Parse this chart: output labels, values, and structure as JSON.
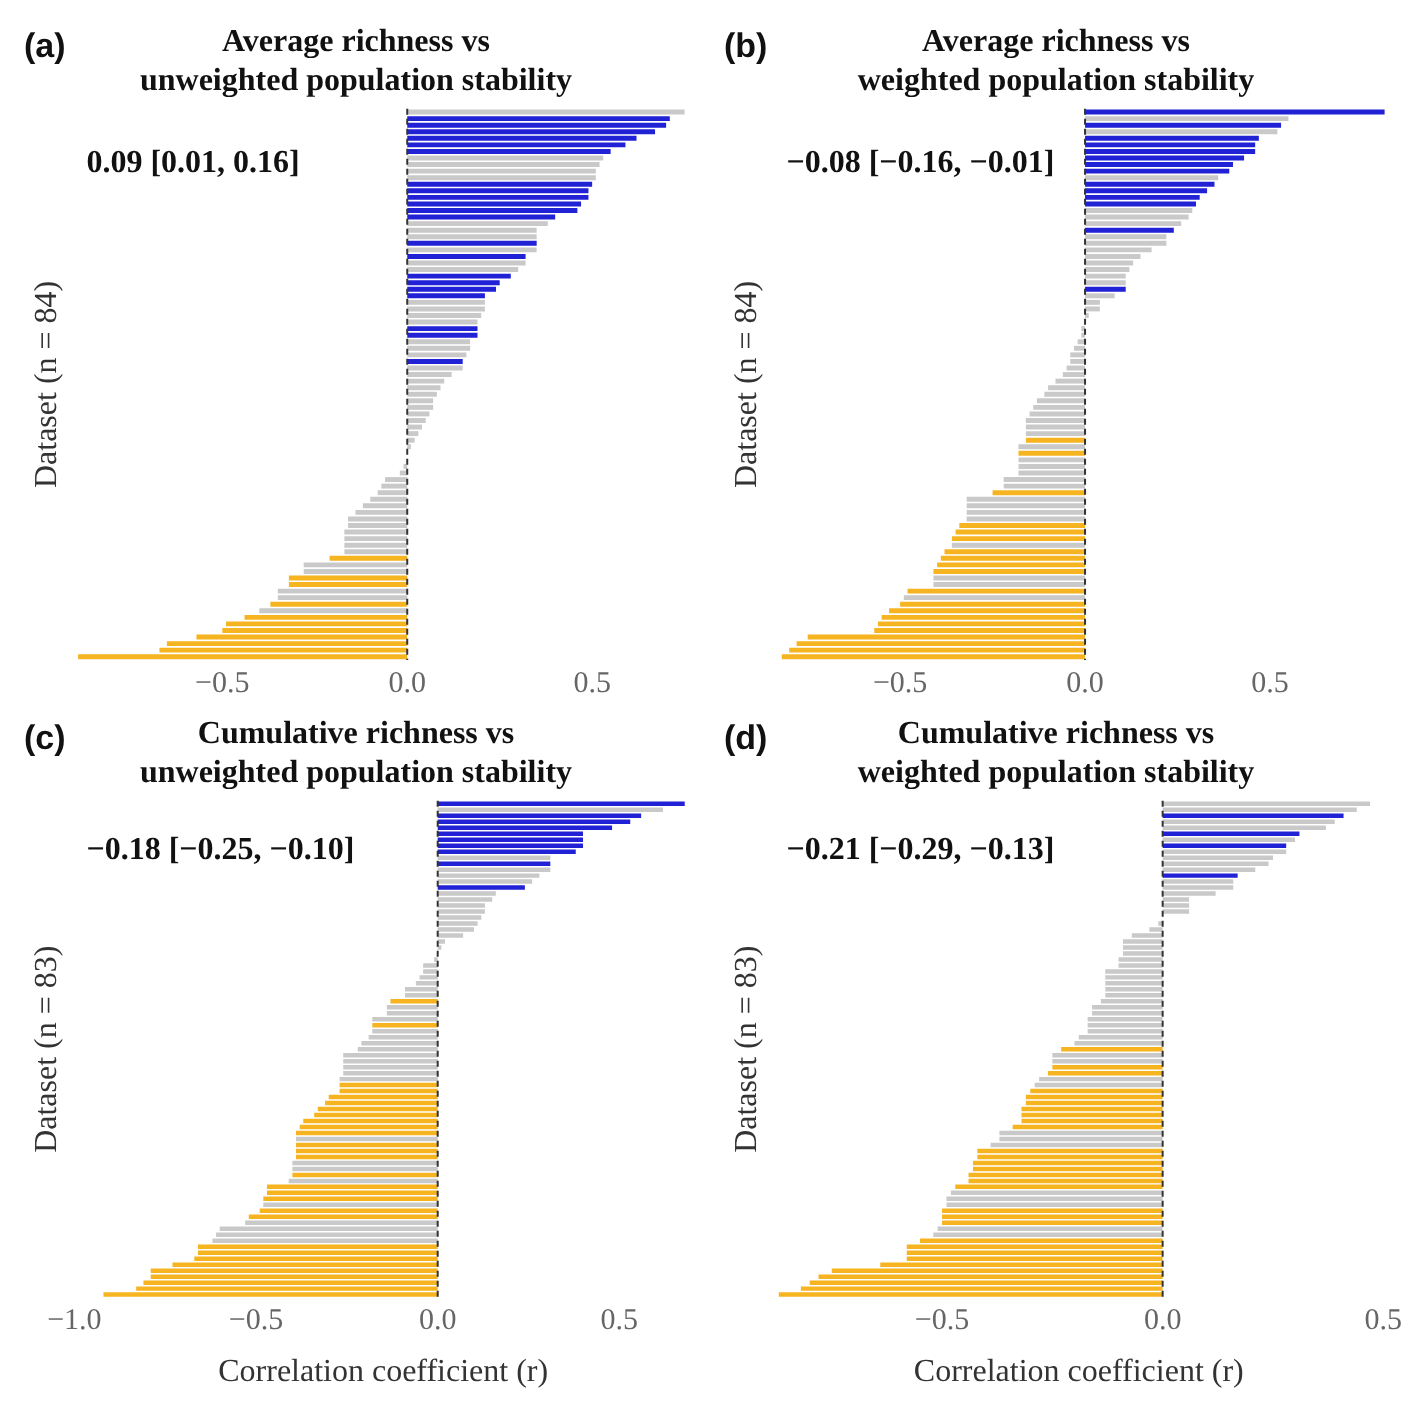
{
  "chart_data": [
    {
      "type": "bar",
      "orientation": "horizontal",
      "title": "Average richness vs\nunweighted population stability",
      "ylabel": "Dataset (n = 84)",
      "tick_labels": "x",
      "xlim": [
        -0.9,
        0.77
      ],
      "xticks": [
        {
          "value": -0.5,
          "label": "−0.5"
        },
        {
          "value": 0,
          "label": "0.0"
        },
        {
          "value": 0.5,
          "label": "0.5"
        }
      ],
      "ref_lines": [
        {
          "axis": "x",
          "value": 0,
          "line_style": "dashed",
          "color": "#333333"
        }
      ],
      "annotations": [
        "(a)",
        "0.09 [0.01, 0.16]"
      ],
      "categories": [
        null,
        null,
        null,
        null,
        null,
        null,
        null,
        null,
        null,
        null,
        null,
        null,
        null,
        null,
        null,
        null,
        null,
        null,
        null,
        null,
        null,
        null,
        null,
        null,
        null,
        null,
        null,
        null,
        null,
        null,
        null,
        null,
        null,
        null,
        null,
        null,
        null,
        null,
        null,
        null,
        null,
        null,
        null,
        null,
        null,
        null,
        null,
        null,
        null,
        null,
        null,
        null,
        null,
        null,
        null,
        null,
        null,
        null,
        null,
        null,
        null,
        null,
        null,
        null,
        null,
        null,
        null,
        null,
        null,
        null,
        null,
        null,
        null,
        null,
        null,
        null,
        null,
        null,
        null,
        null,
        null,
        null,
        null,
        null
      ],
      "values": [
        0.75,
        0.71,
        0.7,
        0.67,
        0.62,
        0.59,
        0.55,
        0.53,
        0.52,
        0.51,
        0.51,
        0.5,
        0.49,
        0.49,
        0.47,
        0.46,
        0.4,
        0.38,
        0.35,
        0.35,
        0.35,
        0.35,
        0.32,
        0.32,
        0.3,
        0.28,
        0.25,
        0.24,
        0.21,
        0.21,
        0.21,
        0.2,
        0.19,
        0.19,
        0.19,
        0.17,
        0.17,
        0.16,
        0.15,
        0.15,
        0.12,
        0.1,
        0.09,
        0.08,
        0.07,
        0.07,
        0.06,
        0.05,
        0.04,
        0.03,
        0.02,
        0.01,
        0,
        0,
        -0.01,
        -0.02,
        -0.06,
        -0.07,
        -0.08,
        -0.1,
        -0.12,
        -0.14,
        -0.16,
        -0.16,
        -0.17,
        -0.17,
        -0.17,
        -0.17,
        -0.21,
        -0.28,
        -0.28,
        -0.32,
        -0.32,
        -0.35,
        -0.35,
        -0.37,
        -0.4,
        -0.44,
        -0.49,
        -0.5,
        -0.57,
        -0.65,
        -0.67,
        -0.89
      ],
      "colors": [
        "#c9c9c9",
        "#2121d6",
        "#2121d6",
        "#2121d6",
        "#2121d6",
        "#2121d6",
        "#2121d6",
        "#c9c9c9",
        "#c9c9c9",
        "#c9c9c9",
        "#c9c9c9",
        "#2121d6",
        "#2121d6",
        "#2121d6",
        "#2121d6",
        "#2121d6",
        "#2121d6",
        "#c9c9c9",
        "#c9c9c9",
        "#c9c9c9",
        "#2121d6",
        "#c9c9c9",
        "#2121d6",
        "#c9c9c9",
        "#c9c9c9",
        "#2121d6",
        "#2121d6",
        "#2121d6",
        "#2121d6",
        "#c9c9c9",
        "#c9c9c9",
        "#c9c9c9",
        "#c9c9c9",
        "#2121d6",
        "#2121d6",
        "#c9c9c9",
        "#c9c9c9",
        "#c9c9c9",
        "#2121d6",
        "#c9c9c9",
        "#c9c9c9",
        "#c9c9c9",
        "#c9c9c9",
        "#c9c9c9",
        "#c9c9c9",
        "#c9c9c9",
        "#c9c9c9",
        "#c9c9c9",
        "#c9c9c9",
        "#c9c9c9",
        "#c9c9c9",
        "#c9c9c9",
        "#c9c9c9",
        "#c9c9c9",
        "#c9c9c9",
        "#c9c9c9",
        "#c9c9c9",
        "#c9c9c9",
        "#c9c9c9",
        "#c9c9c9",
        "#c9c9c9",
        "#c9c9c9",
        "#c9c9c9",
        "#c9c9c9",
        "#c9c9c9",
        "#c9c9c9",
        "#c9c9c9",
        "#c9c9c9",
        "#f6b420",
        "#c9c9c9",
        "#c9c9c9",
        "#f6b420",
        "#f6b420",
        "#c9c9c9",
        "#c9c9c9",
        "#f6b420",
        "#c9c9c9",
        "#f6b420",
        "#f6b420",
        "#f6b420",
        "#f6b420",
        "#f6b420",
        "#f6b420",
        "#f6b420"
      ]
    },
    {
      "type": "bar",
      "orientation": "horizontal",
      "title": "Average richness vs\nweighted population stability",
      "ylabel": "Dataset (n = 84)",
      "tick_labels": "x",
      "xlim": [
        -0.84,
        0.83
      ],
      "xticks": [
        {
          "value": -0.5,
          "label": "−0.5"
        },
        {
          "value": 0,
          "label": "0.0"
        },
        {
          "value": 0.5,
          "label": "0.5"
        }
      ],
      "ref_lines": [
        {
          "axis": "x",
          "value": 0,
          "line_style": "dashed",
          "color": "#333333"
        }
      ],
      "annotations": [
        "(b)",
        "−0.08 [−0.16, −0.01]"
      ],
      "categories": [
        null,
        null,
        null,
        null,
        null,
        null,
        null,
        null,
        null,
        null,
        null,
        null,
        null,
        null,
        null,
        null,
        null,
        null,
        null,
        null,
        null,
        null,
        null,
        null,
        null,
        null,
        null,
        null,
        null,
        null,
        null,
        null,
        null,
        null,
        null,
        null,
        null,
        null,
        null,
        null,
        null,
        null,
        null,
        null,
        null,
        null,
        null,
        null,
        null,
        null,
        null,
        null,
        null,
        null,
        null,
        null,
        null,
        null,
        null,
        null,
        null,
        null,
        null,
        null,
        null,
        null,
        null,
        null,
        null,
        null,
        null,
        null,
        null,
        null,
        null,
        null,
        null,
        null,
        null,
        null,
        null,
        null,
        null,
        null
      ],
      "values": [
        0.81,
        0.55,
        0.53,
        0.52,
        0.47,
        0.46,
        0.46,
        0.43,
        0.4,
        0.39,
        0.36,
        0.35,
        0.33,
        0.31,
        0.3,
        0.29,
        0.28,
        0.26,
        0.24,
        0.22,
        0.22,
        0.18,
        0.15,
        0.13,
        0.12,
        0.11,
        0.11,
        0.11,
        0.08,
        0.04,
        0.04,
        0.01,
        0,
        -0.01,
        -0.01,
        -0.02,
        -0.03,
        -0.04,
        -0.04,
        -0.05,
        -0.06,
        -0.08,
        -0.1,
        -0.11,
        -0.13,
        -0.14,
        -0.15,
        -0.16,
        -0.16,
        -0.16,
        -0.16,
        -0.18,
        -0.18,
        -0.18,
        -0.18,
        -0.18,
        -0.22,
        -0.22,
        -0.25,
        -0.32,
        -0.32,
        -0.32,
        -0.32,
        -0.34,
        -0.35,
        -0.36,
        -0.36,
        -0.38,
        -0.39,
        -0.4,
        -0.41,
        -0.41,
        -0.41,
        -0.48,
        -0.49,
        -0.5,
        -0.53,
        -0.55,
        -0.56,
        -0.57,
        -0.75,
        -0.78,
        -0.8,
        -0.82
      ],
      "colors": [
        "#2121d6",
        "#c9c9c9",
        "#2121d6",
        "#c9c9c9",
        "#2121d6",
        "#2121d6",
        "#2121d6",
        "#2121d6",
        "#2121d6",
        "#2121d6",
        "#c9c9c9",
        "#2121d6",
        "#2121d6",
        "#2121d6",
        "#2121d6",
        "#c9c9c9",
        "#c9c9c9",
        "#c9c9c9",
        "#2121d6",
        "#c9c9c9",
        "#c9c9c9",
        "#c9c9c9",
        "#c9c9c9",
        "#c9c9c9",
        "#c9c9c9",
        "#c9c9c9",
        "#c9c9c9",
        "#2121d6",
        "#c9c9c9",
        "#c9c9c9",
        "#c9c9c9",
        "#c9c9c9",
        "#c9c9c9",
        "#c9c9c9",
        "#c9c9c9",
        "#c9c9c9",
        "#c9c9c9",
        "#c9c9c9",
        "#c9c9c9",
        "#c9c9c9",
        "#c9c9c9",
        "#c9c9c9",
        "#c9c9c9",
        "#c9c9c9",
        "#c9c9c9",
        "#c9c9c9",
        "#c9c9c9",
        "#c9c9c9",
        "#c9c9c9",
        "#c9c9c9",
        "#f6b420",
        "#c9c9c9",
        "#f6b420",
        "#c9c9c9",
        "#c9c9c9",
        "#c9c9c9",
        "#c9c9c9",
        "#c9c9c9",
        "#f6b420",
        "#c9c9c9",
        "#c9c9c9",
        "#c9c9c9",
        "#c9c9c9",
        "#f6b420",
        "#f6b420",
        "#f6b420",
        "#c9c9c9",
        "#f6b420",
        "#f6b420",
        "#f6b420",
        "#f6b420",
        "#c9c9c9",
        "#c9c9c9",
        "#f6b420",
        "#c9c9c9",
        "#f6b420",
        "#f6b420",
        "#f6b420",
        "#f6b420",
        "#f6b420",
        "#f6b420",
        "#f6b420",
        "#f6b420",
        "#f6b420"
      ]
    },
    {
      "type": "bar",
      "orientation": "horizontal",
      "title": "Cumulative richness vs\nunweighted population stability",
      "xlabel": "Correlation coefficient (r)",
      "ylabel": "Dataset (n = 83)",
      "tick_labels": "x",
      "xlim": [
        -1.0,
        0.7
      ],
      "xticks": [
        {
          "value": -1,
          "label": "−1.0"
        },
        {
          "value": -0.5,
          "label": "−0.5"
        },
        {
          "value": 0,
          "label": "0.0"
        },
        {
          "value": 0.5,
          "label": "0.5"
        }
      ],
      "ref_lines": [
        {
          "axis": "x",
          "value": 0,
          "line_style": "dashed",
          "color": "#333333"
        }
      ],
      "annotations": [
        "(c)",
        "−0.18 [−0.25, −0.10]"
      ],
      "categories": [
        null,
        null,
        null,
        null,
        null,
        null,
        null,
        null,
        null,
        null,
        null,
        null,
        null,
        null,
        null,
        null,
        null,
        null,
        null,
        null,
        null,
        null,
        null,
        null,
        null,
        null,
        null,
        null,
        null,
        null,
        null,
        null,
        null,
        null,
        null,
        null,
        null,
        null,
        null,
        null,
        null,
        null,
        null,
        null,
        null,
        null,
        null,
        null,
        null,
        null,
        null,
        null,
        null,
        null,
        null,
        null,
        null,
        null,
        null,
        null,
        null,
        null,
        null,
        null,
        null,
        null,
        null,
        null,
        null,
        null,
        null,
        null,
        null,
        null,
        null,
        null,
        null,
        null,
        null,
        null,
        null,
        null,
        null
      ],
      "values": [
        0.68,
        0.62,
        0.56,
        0.53,
        0.48,
        0.4,
        0.4,
        0.4,
        0.38,
        0.31,
        0.31,
        0.31,
        0.28,
        0.26,
        0.24,
        0.16,
        0.15,
        0.13,
        0.13,
        0.12,
        0.11,
        0.1,
        0.07,
        0.02,
        0.01,
        0,
        -0.01,
        -0.04,
        -0.04,
        -0.05,
        -0.06,
        -0.09,
        -0.09,
        -0.13,
        -0.14,
        -0.14,
        -0.18,
        -0.18,
        -0.18,
        -0.19,
        -0.21,
        -0.22,
        -0.26,
        -0.26,
        -0.26,
        -0.26,
        -0.27,
        -0.27,
        -0.27,
        -0.3,
        -0.31,
        -0.33,
        -0.34,
        -0.37,
        -0.38,
        -0.39,
        -0.39,
        -0.39,
        -0.39,
        -0.39,
        -0.4,
        -0.4,
        -0.4,
        -0.41,
        -0.47,
        -0.47,
        -0.48,
        -0.48,
        -0.49,
        -0.52,
        -0.53,
        -0.6,
        -0.61,
        -0.62,
        -0.66,
        -0.66,
        -0.67,
        -0.73,
        -0.79,
        -0.79,
        -0.81,
        -0.83,
        -0.92
      ],
      "colors": [
        "#2121d6",
        "#c9c9c9",
        "#2121d6",
        "#2121d6",
        "#2121d6",
        "#2121d6",
        "#2121d6",
        "#2121d6",
        "#2121d6",
        "#c9c9c9",
        "#2121d6",
        "#c9c9c9",
        "#c9c9c9",
        "#c9c9c9",
        "#2121d6",
        "#c9c9c9",
        "#c9c9c9",
        "#c9c9c9",
        "#c9c9c9",
        "#c9c9c9",
        "#c9c9c9",
        "#c9c9c9",
        "#c9c9c9",
        "#c9c9c9",
        "#c9c9c9",
        "#c9c9c9",
        "#c9c9c9",
        "#c9c9c9",
        "#c9c9c9",
        "#c9c9c9",
        "#c9c9c9",
        "#c9c9c9",
        "#c9c9c9",
        "#f6b420",
        "#c9c9c9",
        "#c9c9c9",
        "#c9c9c9",
        "#f6b420",
        "#c9c9c9",
        "#c9c9c9",
        "#c9c9c9",
        "#c9c9c9",
        "#c9c9c9",
        "#c9c9c9",
        "#c9c9c9",
        "#c9c9c9",
        "#c9c9c9",
        "#f6b420",
        "#f6b420",
        "#f6b420",
        "#f6b420",
        "#f6b420",
        "#f6b420",
        "#f6b420",
        "#f6b420",
        "#f6b420",
        "#c9c9c9",
        "#f6b420",
        "#f6b420",
        "#f6b420",
        "#c9c9c9",
        "#c9c9c9",
        "#f6b420",
        "#c9c9c9",
        "#f6b420",
        "#f6b420",
        "#f6b420",
        "#c9c9c9",
        "#f6b420",
        "#f6b420",
        "#c9c9c9",
        "#c9c9c9",
        "#c9c9c9",
        "#c9c9c9",
        "#f6b420",
        "#f6b420",
        "#f6b420",
        "#f6b420",
        "#f6b420",
        "#f6b420",
        "#f6b420",
        "#f6b420",
        "#f6b420"
      ]
    },
    {
      "type": "bar",
      "orientation": "horizontal",
      "title": "Cumulative richness vs\nweighted population stability",
      "xlabel": "Correlation coefficient (r)",
      "ylabel": "Dataset (n = 83)",
      "tick_labels": "x",
      "xlim": [
        -0.88,
        0.5
      ],
      "xticks": [
        {
          "value": -0.5,
          "label": "−0.5"
        },
        {
          "value": 0,
          "label": "0.0"
        },
        {
          "value": 0.5,
          "label": "0.5"
        }
      ],
      "ref_lines": [
        {
          "axis": "x",
          "value": 0,
          "line_style": "dashed",
          "color": "#333333"
        }
      ],
      "annotations": [
        "(d)",
        "−0.21 [−0.29, −0.13]"
      ],
      "categories": [
        null,
        null,
        null,
        null,
        null,
        null,
        null,
        null,
        null,
        null,
        null,
        null,
        null,
        null,
        null,
        null,
        null,
        null,
        null,
        null,
        null,
        null,
        null,
        null,
        null,
        null,
        null,
        null,
        null,
        null,
        null,
        null,
        null,
        null,
        null,
        null,
        null,
        null,
        null,
        null,
        null,
        null,
        null,
        null,
        null,
        null,
        null,
        null,
        null,
        null,
        null,
        null,
        null,
        null,
        null,
        null,
        null,
        null,
        null,
        null,
        null,
        null,
        null,
        null,
        null,
        null,
        null,
        null,
        null,
        null,
        null,
        null,
        null,
        null,
        null,
        null,
        null,
        null,
        null,
        null,
        null,
        null,
        null
      ],
      "values": [
        0.47,
        0.44,
        0.41,
        0.39,
        0.37,
        0.31,
        0.3,
        0.28,
        0.28,
        0.25,
        0.24,
        0.21,
        0.17,
        0.16,
        0.16,
        0.12,
        0.06,
        0.06,
        0.06,
        0,
        -0.01,
        -0.03,
        -0.07,
        -0.09,
        -0.09,
        -0.09,
        -0.1,
        -0.1,
        -0.13,
        -0.13,
        -0.13,
        -0.13,
        -0.13,
        -0.14,
        -0.16,
        -0.16,
        -0.17,
        -0.17,
        -0.17,
        -0.19,
        -0.2,
        -0.23,
        -0.25,
        -0.25,
        -0.25,
        -0.26,
        -0.28,
        -0.29,
        -0.3,
        -0.31,
        -0.31,
        -0.32,
        -0.32,
        -0.32,
        -0.34,
        -0.37,
        -0.37,
        -0.39,
        -0.42,
        -0.42,
        -0.43,
        -0.43,
        -0.44,
        -0.44,
        -0.47,
        -0.48,
        -0.49,
        -0.49,
        -0.5,
        -0.5,
        -0.5,
        -0.51,
        -0.52,
        -0.55,
        -0.58,
        -0.58,
        -0.58,
        -0.64,
        -0.75,
        -0.78,
        -0.8,
        -0.82,
        -0.87
      ],
      "colors": [
        "#c9c9c9",
        "#c9c9c9",
        "#2121d6",
        "#c9c9c9",
        "#c9c9c9",
        "#2121d6",
        "#c9c9c9",
        "#2121d6",
        "#c9c9c9",
        "#c9c9c9",
        "#c9c9c9",
        "#c9c9c9",
        "#2121d6",
        "#c9c9c9",
        "#c9c9c9",
        "#c9c9c9",
        "#c9c9c9",
        "#c9c9c9",
        "#c9c9c9",
        "#c9c9c9",
        "#c9c9c9",
        "#c9c9c9",
        "#c9c9c9",
        "#c9c9c9",
        "#c9c9c9",
        "#c9c9c9",
        "#c9c9c9",
        "#c9c9c9",
        "#c9c9c9",
        "#c9c9c9",
        "#c9c9c9",
        "#c9c9c9",
        "#c9c9c9",
        "#c9c9c9",
        "#c9c9c9",
        "#c9c9c9",
        "#c9c9c9",
        "#c9c9c9",
        "#c9c9c9",
        "#c9c9c9",
        "#c9c9c9",
        "#f6b420",
        "#c9c9c9",
        "#c9c9c9",
        "#f6b420",
        "#f6b420",
        "#c9c9c9",
        "#c9c9c9",
        "#f6b420",
        "#f6b420",
        "#f6b420",
        "#f6b420",
        "#f6b420",
        "#f6b420",
        "#f6b420",
        "#c9c9c9",
        "#c9c9c9",
        "#c9c9c9",
        "#f6b420",
        "#f6b420",
        "#f6b420",
        "#f6b420",
        "#f6b420",
        "#f6b420",
        "#f6b420",
        "#c9c9c9",
        "#c9c9c9",
        "#c9c9c9",
        "#f6b420",
        "#f6b420",
        "#f6b420",
        "#c9c9c9",
        "#c9c9c9",
        "#f6b420",
        "#f6b420",
        "#f6b420",
        "#f6b420",
        "#f6b420",
        "#f6b420",
        "#f6b420",
        "#f6b420",
        "#f6b420",
        "#f6b420"
      ]
    }
  ]
}
